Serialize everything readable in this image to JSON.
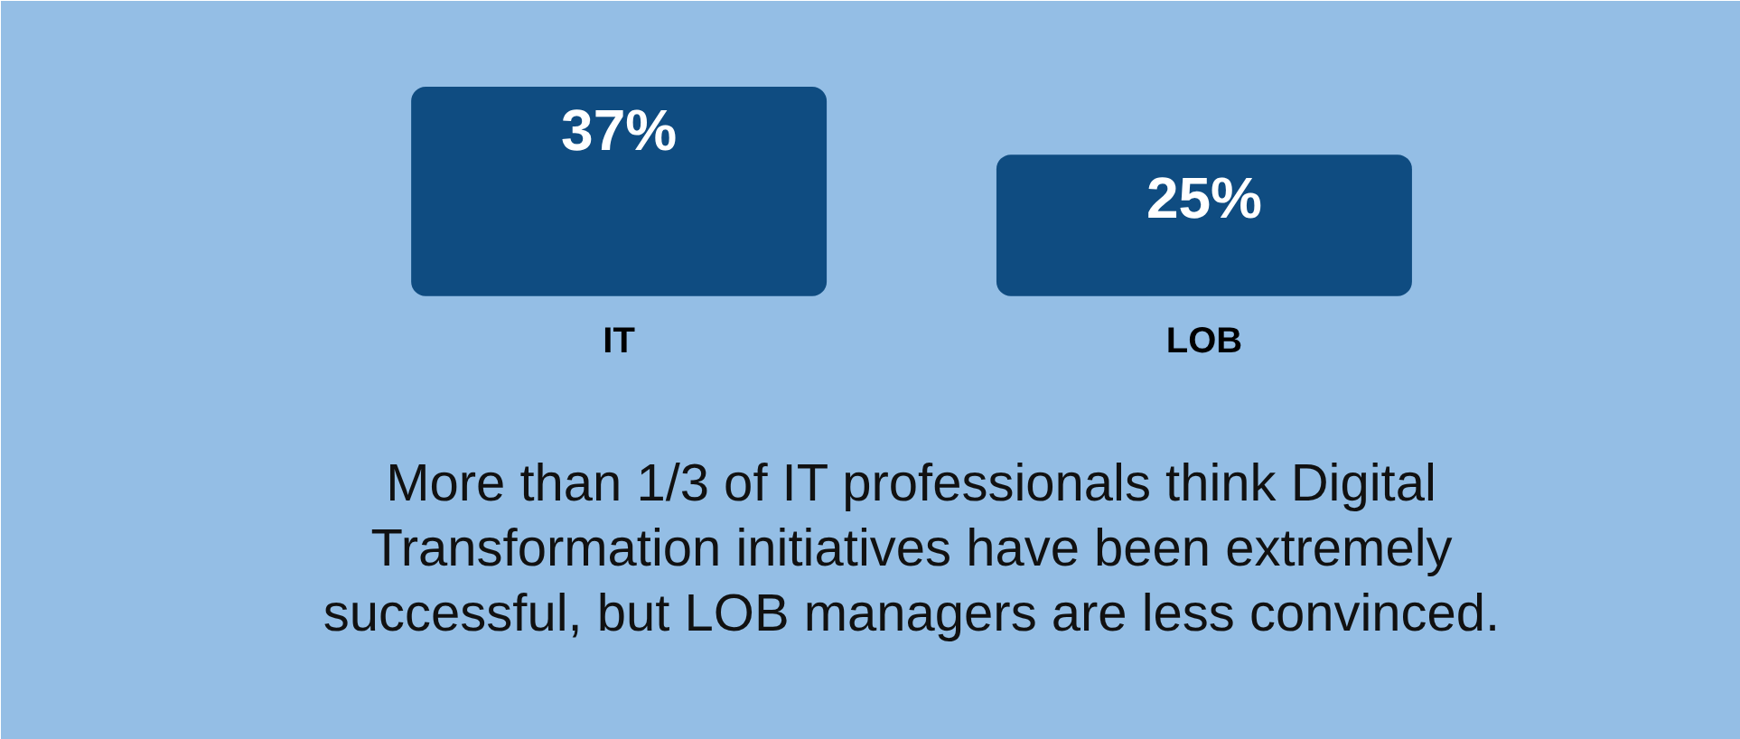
{
  "chart_data": {
    "type": "bar",
    "categories": [
      "IT",
      "LOB"
    ],
    "values": [
      37,
      25
    ],
    "color": "#0f4c81",
    "data_labels": true,
    "value_labels": [
      "37%",
      "25%"
    ],
    "annotations": [
      "More than 1/3 of IT professionals think Digital Transformation initiatives have been extremely successful, but LOB managers are less convinced."
    ]
  }
}
